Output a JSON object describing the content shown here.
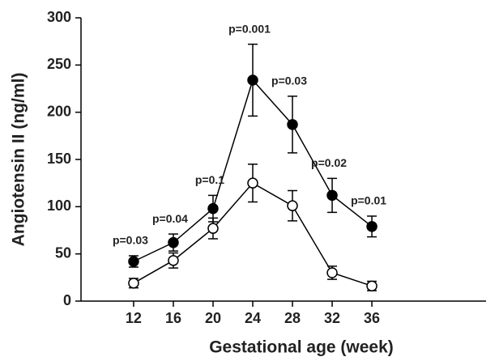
{
  "chart_data": {
    "type": "line",
    "x": [
      12,
      16,
      20,
      24,
      28,
      32,
      36
    ],
    "xlim": [
      6.7,
      47.5
    ],
    "xticks": [
      12,
      16,
      20,
      24,
      28,
      32,
      36
    ],
    "ylim": [
      0,
      300
    ],
    "yticks": [
      0,
      50,
      100,
      150,
      200,
      250,
      300
    ],
    "xlabel": "Gestational age (week)",
    "ylabel": "Angiotensin II (ng/ml)",
    "series": [
      {
        "color": "#000000",
        "marker": "filled",
        "values": [
          42,
          62,
          98,
          234,
          187,
          112,
          79
        ],
        "errors": [
          6,
          9,
          14,
          38,
          30,
          18,
          11
        ]
      },
      {
        "color": "#000000",
        "marker": "open",
        "values": [
          19,
          43,
          77,
          125,
          101,
          30,
          16
        ],
        "errors": [
          5,
          8,
          11,
          20,
          16,
          7,
          5
        ]
      }
    ],
    "annotations": [
      "p=0.03",
      "p=0.04",
      "p=0.1",
      "p=0.001",
      "p=0.03",
      "p=0.02",
      "p=0.01"
    ]
  }
}
